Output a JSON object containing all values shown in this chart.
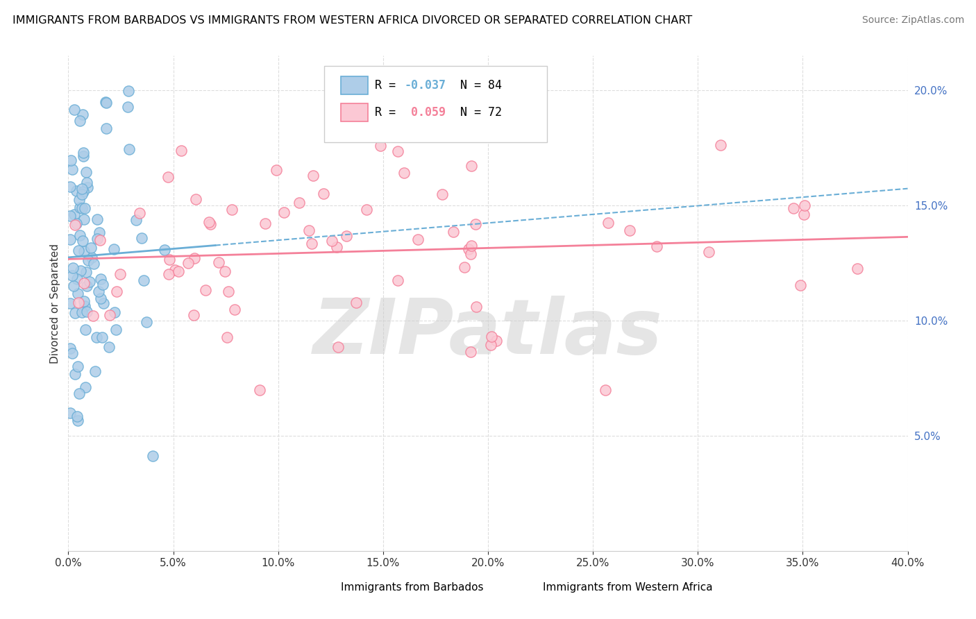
{
  "title": "IMMIGRANTS FROM BARBADOS VS IMMIGRANTS FROM WESTERN AFRICA DIVORCED OR SEPARATED CORRELATION CHART",
  "source": "Source: ZipAtlas.com",
  "ylabel": "Divorced or Separated",
  "legend_labels_bottom": [
    "Immigrants from Barbados",
    "Immigrants from Western Africa"
  ],
  "barbados_fill_color": "#aecde8",
  "barbados_edge_color": "#6aaed6",
  "western_africa_fill_color": "#fbc8d4",
  "western_africa_edge_color": "#f48099",
  "barbados_line_color": "#6aaed6",
  "western_africa_line_color": "#f48099",
  "xmin": 0.0,
  "xmax": 0.4,
  "ymin": 0.0,
  "ymax": 0.215,
  "yticks": [
    0.05,
    0.1,
    0.15,
    0.2
  ],
  "xticks": [
    0.0,
    0.05,
    0.1,
    0.15,
    0.2,
    0.25,
    0.3,
    0.35,
    0.4
  ],
  "barbados_R": -0.037,
  "barbados_N": 84,
  "western_africa_R": 0.059,
  "western_africa_N": 72,
  "watermark": "ZIPatlas",
  "background_color": "#ffffff",
  "grid_color": "#dddddd",
  "legend_R1": "R = -0.037",
  "legend_N1": "N = 84",
  "legend_R2": "R =  0.059",
  "legend_N2": "N = 72"
}
